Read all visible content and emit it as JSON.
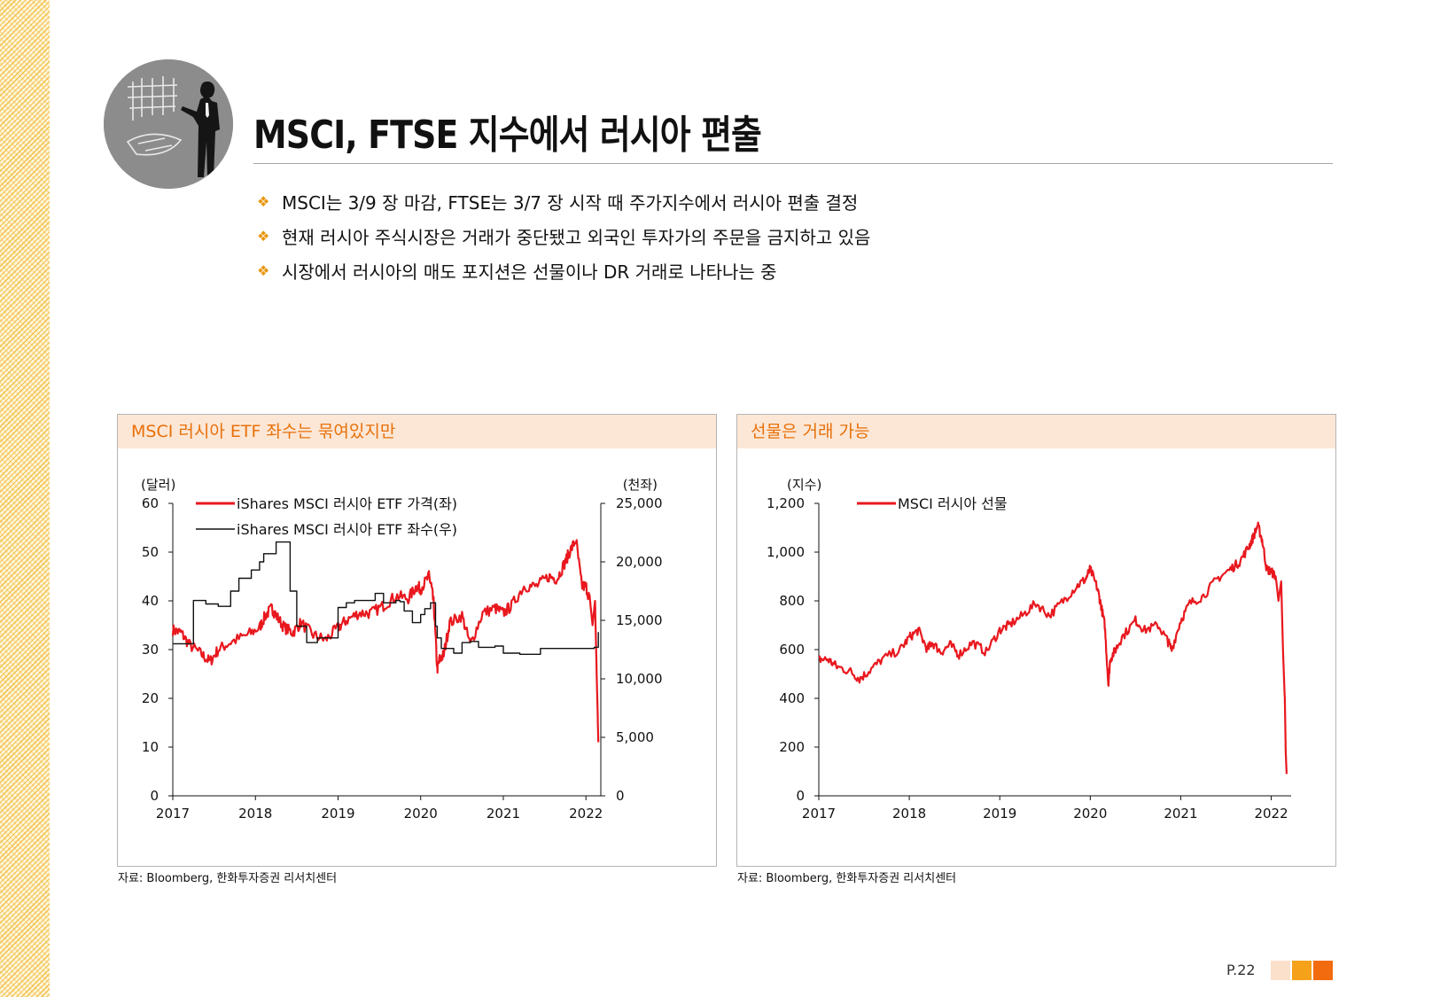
{
  "title": "MSCI, FTSE 지수에서 러시아 편출",
  "bullets": [
    "MSCI는 3/9 장 마감, FTSE는 3/7 장 시작 때 주가지수에서 러시아 편출 결정",
    "현재 러시아 주식시장은 거래가 중단됐고 외국인 투자가의 주문을 금지하고 있음",
    "시장에서 러시아의 매도 포지션은 선물이나 DR 거래로 나타나는 중"
  ],
  "bullet_marker": "❖",
  "colors": {
    "accent": "#e8700a",
    "series_red": "#e8181e",
    "series_black": "#111111",
    "header_bg": "#fce7d6"
  },
  "page_number": "P.22",
  "chart_data": [
    {
      "type": "line",
      "panel_title": "MSCI 러시아 ETF 좌수는 묶여있지만",
      "ylabel": "(달러)",
      "y2label": "(천좌)",
      "ylim": [
        0,
        60
      ],
      "y2lim": [
        0,
        25000
      ],
      "xlim": [
        2017,
        2022.18
      ],
      "y_ticks": [
        "0",
        "10",
        "20",
        "30",
        "40",
        "50",
        "60"
      ],
      "y2_ticks": [
        "0",
        "5,000",
        "10,000",
        "15,000",
        "20,000",
        "25,000"
      ],
      "x_ticks": [
        "2017",
        "2018",
        "2019",
        "2020",
        "2021",
        "2022"
      ],
      "source": "자료: Bloomberg, 한화투자증권 리서치센터",
      "series": [
        {
          "name": "iShares MSCI 러시아 ETF 가격(좌)",
          "axis": "left",
          "color": "#e8181e",
          "x": [
            2017.0,
            2017.1,
            2017.2,
            2017.35,
            2017.45,
            2017.55,
            2017.7,
            2017.9,
            2018.05,
            2018.12,
            2018.2,
            2018.25,
            2018.35,
            2018.45,
            2018.55,
            2018.7,
            2018.85,
            2019.0,
            2019.1,
            2019.25,
            2019.4,
            2019.55,
            2019.7,
            2019.85,
            2019.95,
            2020.0,
            2020.1,
            2020.13,
            2020.16,
            2020.2,
            2020.23,
            2020.28,
            2020.35,
            2020.5,
            2020.6,
            2020.75,
            2020.9,
            2021.0,
            2021.1,
            2021.25,
            2021.4,
            2021.55,
            2021.65,
            2021.75,
            2021.8,
            2021.88,
            2021.95,
            2022.0,
            2022.05,
            2022.08,
            2022.11,
            2022.13,
            2022.15
          ],
          "values": [
            34,
            33.5,
            31,
            29,
            27.5,
            30,
            31.5,
            33,
            34.5,
            37,
            38.5,
            37,
            34.5,
            33.5,
            35.5,
            33,
            32,
            34.5,
            36,
            37.5,
            37.5,
            39,
            41,
            40.5,
            43,
            42.5,
            45,
            43,
            39,
            26,
            28,
            29,
            35.5,
            37,
            31,
            37.5,
            38.5,
            37.5,
            39,
            43,
            43,
            45,
            44.5,
            48,
            50,
            52.5,
            43,
            43,
            40,
            35,
            40,
            25,
            11
          ]
        },
        {
          "name": "iShares MSCI 러시아 ETF 좌수(우)",
          "axis": "right",
          "color": "#111111",
          "x": [
            2017.0,
            2017.15,
            2017.25,
            2017.4,
            2017.55,
            2017.7,
            2017.8,
            2017.95,
            2018.05,
            2018.1,
            2018.25,
            2018.35,
            2018.42,
            2018.5,
            2018.62,
            2018.75,
            2019.0,
            2019.1,
            2019.2,
            2019.3,
            2019.45,
            2019.55,
            2019.7,
            2019.75,
            2019.8,
            2019.9,
            2020.0,
            2020.05,
            2020.12,
            2020.18,
            2020.2,
            2020.25,
            2020.4,
            2020.5,
            2020.6,
            2020.7,
            2020.8,
            2020.9,
            2021.0,
            2021.2,
            2021.4,
            2021.45,
            2021.6,
            2021.8,
            2022.0,
            2022.1,
            2022.15
          ],
          "values": [
            13000,
            13000,
            16700,
            16400,
            16200,
            17500,
            18600,
            19300,
            20000,
            20700,
            21700,
            21700,
            17500,
            14500,
            13100,
            13500,
            16100,
            16500,
            16700,
            16700,
            17300,
            16500,
            16700,
            16600,
            15800,
            14800,
            15500,
            16000,
            16500,
            14500,
            13500,
            12600,
            12200,
            13100,
            13200,
            12700,
            12700,
            12800,
            12200,
            12100,
            12100,
            12600,
            12600,
            12600,
            12600,
            12700,
            14000
          ]
        }
      ]
    },
    {
      "type": "line",
      "panel_title": "선물은 거래 가능",
      "ylabel": "(지수)",
      "ylim": [
        0,
        1200
      ],
      "xlim": [
        2017,
        2022.22
      ],
      "y_ticks": [
        "0",
        "200",
        "400",
        "600",
        "800",
        "1,000",
        "1,200"
      ],
      "x_ticks": [
        "2017",
        "2018",
        "2019",
        "2020",
        "2021",
        "2022"
      ],
      "source": "자료: Bloomberg, 한화투자증권 리서치센터",
      "series": [
        {
          "name": "MSCI 러시아 선물",
          "axis": "left",
          "color": "#e8181e",
          "x": [
            2017.0,
            2017.1,
            2017.2,
            2017.35,
            2017.45,
            2017.55,
            2017.7,
            2017.9,
            2018.0,
            2018.1,
            2018.2,
            2018.25,
            2018.35,
            2018.45,
            2018.55,
            2018.7,
            2018.85,
            2019.0,
            2019.1,
            2019.25,
            2019.4,
            2019.55,
            2019.7,
            2019.85,
            2019.95,
            2020.0,
            2020.08,
            2020.12,
            2020.16,
            2020.2,
            2020.22,
            2020.28,
            2020.35,
            2020.5,
            2020.6,
            2020.75,
            2020.85,
            2020.9,
            2021.0,
            2021.1,
            2021.25,
            2021.4,
            2021.55,
            2021.65,
            2021.75,
            2021.8,
            2021.85,
            2021.9,
            2021.95,
            2022.0,
            2022.05,
            2022.08,
            2022.11,
            2022.13,
            2022.15,
            2022.16,
            2022.17
          ],
          "values": [
            560,
            560,
            530,
            510,
            480,
            510,
            560,
            600,
            650,
            680,
            600,
            630,
            590,
            620,
            580,
            630,
            590,
            680,
            700,
            740,
            790,
            740,
            800,
            860,
            890,
            930,
            850,
            780,
            700,
            460,
            560,
            600,
            650,
            720,
            680,
            700,
            640,
            600,
            720,
            790,
            820,
            890,
            930,
            960,
            1020,
            1060,
            1110,
            1050,
            930,
            920,
            900,
            800,
            880,
            600,
            400,
            180,
            90
          ]
        }
      ]
    }
  ]
}
